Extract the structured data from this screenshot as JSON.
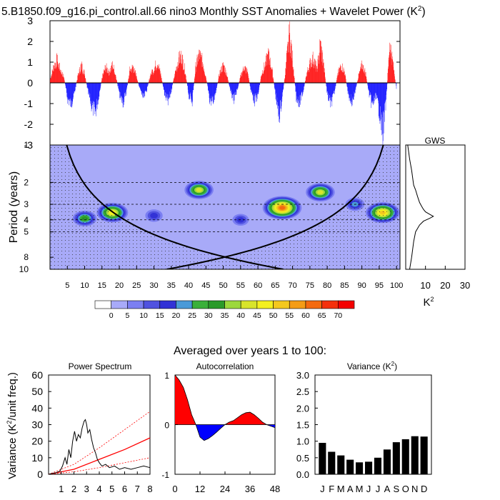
{
  "title": "5.B1850.f09_g16.pi_control.all.66 nino3 Monthly SST Anomalies + Wavelet Power (K",
  "title_sup": "2",
  "title_close": ")",
  "chart_data": [
    {
      "id": "sst-timeseries",
      "type": "bar",
      "title": "",
      "ylim": [
        -3,
        3
      ],
      "yticks": [
        -3,
        -2,
        -1,
        0,
        1,
        2,
        3
      ],
      "xlim": [
        0,
        101
      ],
      "colors": {
        "positive": "#ff0000",
        "negative": "#0000ff"
      },
      "envelope": [
        [
          0,
          0.2
        ],
        [
          1,
          0.9
        ],
        [
          2,
          1.3
        ],
        [
          3,
          0.7
        ],
        [
          4,
          0.3
        ],
        [
          5,
          -0.9
        ],
        [
          6,
          -1.2
        ],
        [
          7,
          -0.6
        ],
        [
          8,
          0.4
        ],
        [
          9,
          1.0
        ],
        [
          10,
          0.5
        ],
        [
          11,
          -0.6
        ],
        [
          12,
          -1.3
        ],
        [
          13,
          -1.7
        ],
        [
          14,
          -0.8
        ],
        [
          15,
          0.3
        ],
        [
          16,
          0.9
        ],
        [
          17,
          0.6
        ],
        [
          18,
          1.0
        ],
        [
          19,
          0.4
        ],
        [
          20,
          -0.7
        ],
        [
          21,
          -1.1
        ],
        [
          22,
          -0.5
        ],
        [
          23,
          0.7
        ],
        [
          24,
          0.9
        ],
        [
          25,
          0.3
        ],
        [
          26,
          -0.4
        ],
        [
          27,
          -0.9
        ],
        [
          28,
          -0.3
        ],
        [
          29,
          0.5
        ],
        [
          30,
          0.8
        ],
        [
          31,
          1.2
        ],
        [
          32,
          0.4
        ],
        [
          33,
          -0.6
        ],
        [
          34,
          -1.1
        ],
        [
          35,
          -0.4
        ],
        [
          36,
          0.5
        ],
        [
          37,
          1.3
        ],
        [
          38,
          1.5
        ],
        [
          39,
          0.6
        ],
        [
          40,
          -0.7
        ],
        [
          41,
          -1.0
        ],
        [
          42,
          0.9
        ],
        [
          43,
          1.6
        ],
        [
          44,
          1.2
        ],
        [
          45,
          0.3
        ],
        [
          46,
          -0.9
        ],
        [
          47,
          -1.1
        ],
        [
          48,
          -0.3
        ],
        [
          49,
          0.6
        ],
        [
          50,
          1.0
        ],
        [
          51,
          0.5
        ],
        [
          52,
          -0.5
        ],
        [
          53,
          -0.9
        ],
        [
          54,
          -0.4
        ],
        [
          55,
          0.4
        ],
        [
          56,
          0.9
        ],
        [
          57,
          0.6
        ],
        [
          58,
          -0.5
        ],
        [
          59,
          -1.0
        ],
        [
          60,
          -0.7
        ],
        [
          61,
          0.5
        ],
        [
          62,
          1.0
        ],
        [
          63,
          1.6
        ],
        [
          64,
          0.8
        ],
        [
          65,
          -0.6
        ],
        [
          66,
          -1.9
        ],
        [
          67,
          -0.8
        ],
        [
          68,
          0.8
        ],
        [
          69,
          2.8
        ],
        [
          70,
          1.3
        ],
        [
          71,
          -0.8
        ],
        [
          72,
          -1.1
        ],
        [
          73,
          -0.5
        ],
        [
          74,
          0.5
        ],
        [
          75,
          1.1
        ],
        [
          76,
          1.4
        ],
        [
          77,
          0.7
        ],
        [
          78,
          2.2
        ],
        [
          79,
          0.9
        ],
        [
          80,
          -0.7
        ],
        [
          81,
          -1.2
        ],
        [
          82,
          -0.6
        ],
        [
          83,
          0.5
        ],
        [
          84,
          1.0
        ],
        [
          85,
          0.6
        ],
        [
          86,
          -0.6
        ],
        [
          87,
          -1.1
        ],
        [
          88,
          -0.5
        ],
        [
          89,
          0.4
        ],
        [
          90,
          1.0
        ],
        [
          91,
          0.6
        ],
        [
          92,
          -0.6
        ],
        [
          93,
          -1.3
        ],
        [
          94,
          -0.7
        ],
        [
          95,
          -1.6
        ],
        [
          96,
          -2.8
        ],
        [
          97,
          -0.9
        ],
        [
          98,
          2.3
        ],
        [
          99,
          1.0
        ],
        [
          100,
          -0.4
        ]
      ]
    },
    {
      "id": "wavelet-power",
      "type": "heatmap",
      "xlabel": "",
      "ylabel": "Period (years)",
      "xticks": [
        5,
        10,
        15,
        20,
        25,
        30,
        35,
        40,
        45,
        50,
        55,
        60,
        65,
        70,
        75,
        80,
        85,
        90,
        95,
        100
      ],
      "yticks": [
        1,
        2,
        3,
        4,
        5,
        8,
        10
      ],
      "xlim": [
        0,
        101
      ],
      "ylim": [
        1,
        10
      ],
      "scale": "log",
      "reference_periods": [
        2,
        3,
        4,
        5
      ],
      "background_color": "#a8aaf8",
      "hotspots": [
        {
          "x": 18,
          "period": 3.5,
          "power": 40
        },
        {
          "x": 10,
          "period": 3.9,
          "power": 25
        },
        {
          "x": 30,
          "period": 3.7,
          "power": 12
        },
        {
          "x": 43,
          "period": 2.3,
          "power": 35
        },
        {
          "x": 67,
          "period": 3.2,
          "power": 55
        },
        {
          "x": 78,
          "period": 2.4,
          "power": 35
        },
        {
          "x": 96,
          "period": 3.5,
          "power": 45
        },
        {
          "x": 55,
          "period": 4.0,
          "power": 10
        },
        {
          "x": 88,
          "period": 3.0,
          "power": 15
        }
      ]
    },
    {
      "id": "gws",
      "type": "line",
      "title": "GWS",
      "xlabel": "K",
      "xlabel_sup": "2",
      "xticks": [
        10,
        20,
        30
      ],
      "xlim": [
        0,
        30
      ],
      "scale": "log",
      "ylim": [
        1,
        10
      ],
      "points": [
        [
          1,
          1.0
        ],
        [
          2,
          1.3
        ],
        [
          3,
          1.6
        ],
        [
          4,
          2.1
        ],
        [
          5,
          2.3
        ],
        [
          6,
          2.6
        ],
        [
          7,
          2.9
        ],
        [
          8,
          3.1
        ],
        [
          9,
          3.3
        ],
        [
          10,
          3.45
        ],
        [
          12,
          3.6
        ],
        [
          14,
          3.75
        ],
        [
          12,
          3.9
        ],
        [
          9,
          4.1
        ],
        [
          7,
          4.4
        ],
        [
          5,
          5
        ],
        [
          4,
          6
        ],
        [
          3,
          8
        ],
        [
          2,
          10
        ]
      ]
    },
    {
      "id": "power-spectrum",
      "type": "line",
      "title": "Power Spectrum",
      "xlabel": "",
      "ylabel": "Variance (K",
      "ylabel_sup": "2",
      "ylabel_tail": "/unit freq.)",
      "xlim": [
        0,
        8
      ],
      "ylim": [
        0,
        60
      ],
      "xticks": [
        1,
        2,
        3,
        4,
        5,
        6,
        7,
        8
      ],
      "yticks": [
        0,
        10,
        20,
        30,
        40,
        50,
        60
      ],
      "spectrum": [
        [
          0.0,
          0
        ],
        [
          0.3,
          0.5
        ],
        [
          0.6,
          1
        ],
        [
          0.9,
          2
        ],
        [
          1.1,
          5
        ],
        [
          1.3,
          10
        ],
        [
          1.45,
          6
        ],
        [
          1.6,
          15
        ],
        [
          1.75,
          10
        ],
        [
          1.9,
          20
        ],
        [
          2.05,
          26
        ],
        [
          2.2,
          20
        ],
        [
          2.35,
          24
        ],
        [
          2.5,
          22
        ],
        [
          2.65,
          28
        ],
        [
          2.8,
          32
        ],
        [
          2.9,
          33
        ],
        [
          3.0,
          30
        ],
        [
          3.1,
          25
        ],
        [
          3.25,
          27
        ],
        [
          3.4,
          21
        ],
        [
          3.55,
          16
        ],
        [
          3.7,
          13
        ],
        [
          3.85,
          9
        ],
        [
          4.0,
          7
        ],
        [
          4.2,
          5
        ],
        [
          4.5,
          6
        ],
        [
          4.8,
          4
        ],
        [
          5.2,
          5
        ],
        [
          5.6,
          3
        ],
        [
          6.0,
          4
        ],
        [
          6.5,
          3
        ],
        [
          7.0,
          4
        ],
        [
          7.5,
          5
        ],
        [
          8.0,
          4
        ]
      ],
      "red_noise": [
        [
          0,
          0
        ],
        [
          2,
          3
        ],
        [
          4,
          9
        ],
        [
          6,
          15
        ],
        [
          8,
          22
        ]
      ],
      "confidence_upper": [
        [
          0,
          0
        ],
        [
          2,
          6
        ],
        [
          4,
          16
        ],
        [
          6,
          27
        ],
        [
          8,
          38
        ]
      ],
      "confidence_lower": [
        [
          0,
          0
        ],
        [
          2,
          1.5
        ],
        [
          4,
          4
        ],
        [
          6,
          7
        ],
        [
          8,
          10
        ]
      ],
      "colors": {
        "spectrum": "#000000",
        "red_noise": "#ff0000"
      }
    },
    {
      "id": "autocorrelation",
      "type": "area",
      "title": "Autocorrelation",
      "xlim": [
        0,
        48
      ],
      "ylim": [
        -1,
        1
      ],
      "xticks": [
        0,
        12,
        24,
        36,
        48
      ],
      "yticks": [
        -1,
        0,
        1
      ],
      "values": [
        [
          0,
          1.0
        ],
        [
          2,
          0.9
        ],
        [
          4,
          0.75
        ],
        [
          6,
          0.5
        ],
        [
          8,
          0.2
        ],
        [
          10,
          0.0
        ],
        [
          12,
          -0.25
        ],
        [
          14,
          -0.32
        ],
        [
          16,
          -0.28
        ],
        [
          18,
          -0.22
        ],
        [
          20,
          -0.15
        ],
        [
          22,
          -0.07
        ],
        [
          24,
          0.0
        ],
        [
          26,
          0.05
        ],
        [
          28,
          0.08
        ],
        [
          30,
          0.14
        ],
        [
          32,
          0.2
        ],
        [
          34,
          0.24
        ],
        [
          36,
          0.25
        ],
        [
          38,
          0.2
        ],
        [
          40,
          0.13
        ],
        [
          42,
          0.05
        ],
        [
          44,
          0.0
        ],
        [
          46,
          -0.03
        ],
        [
          48,
          -0.06
        ]
      ],
      "colors": {
        "positive": "#ff0000",
        "negative": "#0000ff"
      }
    },
    {
      "id": "seasonal-variance",
      "type": "bar",
      "title": "Variance (K",
      "title_sup": "2",
      "title_close": ")",
      "categories": [
        "J",
        "F",
        "M",
        "A",
        "M",
        "J",
        "J",
        "A",
        "S",
        "O",
        "N",
        "D"
      ],
      "values": [
        0.95,
        0.68,
        0.57,
        0.44,
        0.36,
        0.38,
        0.5,
        0.75,
        0.97,
        1.06,
        1.15,
        1.14
      ],
      "ylim": [
        0,
        3
      ],
      "yticks": [
        "0.0",
        "0.5",
        "1.0",
        "1.5",
        "2.0",
        "2.5",
        "3.0"
      ]
    }
  ],
  "colorbar": {
    "labels": [
      "0",
      "5",
      "10",
      "15",
      "20",
      "25",
      "30",
      "35",
      "40",
      "45",
      "50",
      "55",
      "60",
      "65",
      "70"
    ],
    "colors": [
      "#ffffff",
      "#a8aaf8",
      "#7b7ff2",
      "#5052e0",
      "#3232d6",
      "#4a9ad8",
      "#3ab03a",
      "#2a9a2a",
      "#9cd83c",
      "#d8e42c",
      "#f4f020",
      "#f4c81e",
      "#f49c16",
      "#f46a10",
      "#f4300c",
      "#f40000"
    ]
  },
  "averaged_label": "Averaged over years 1 to 100:"
}
